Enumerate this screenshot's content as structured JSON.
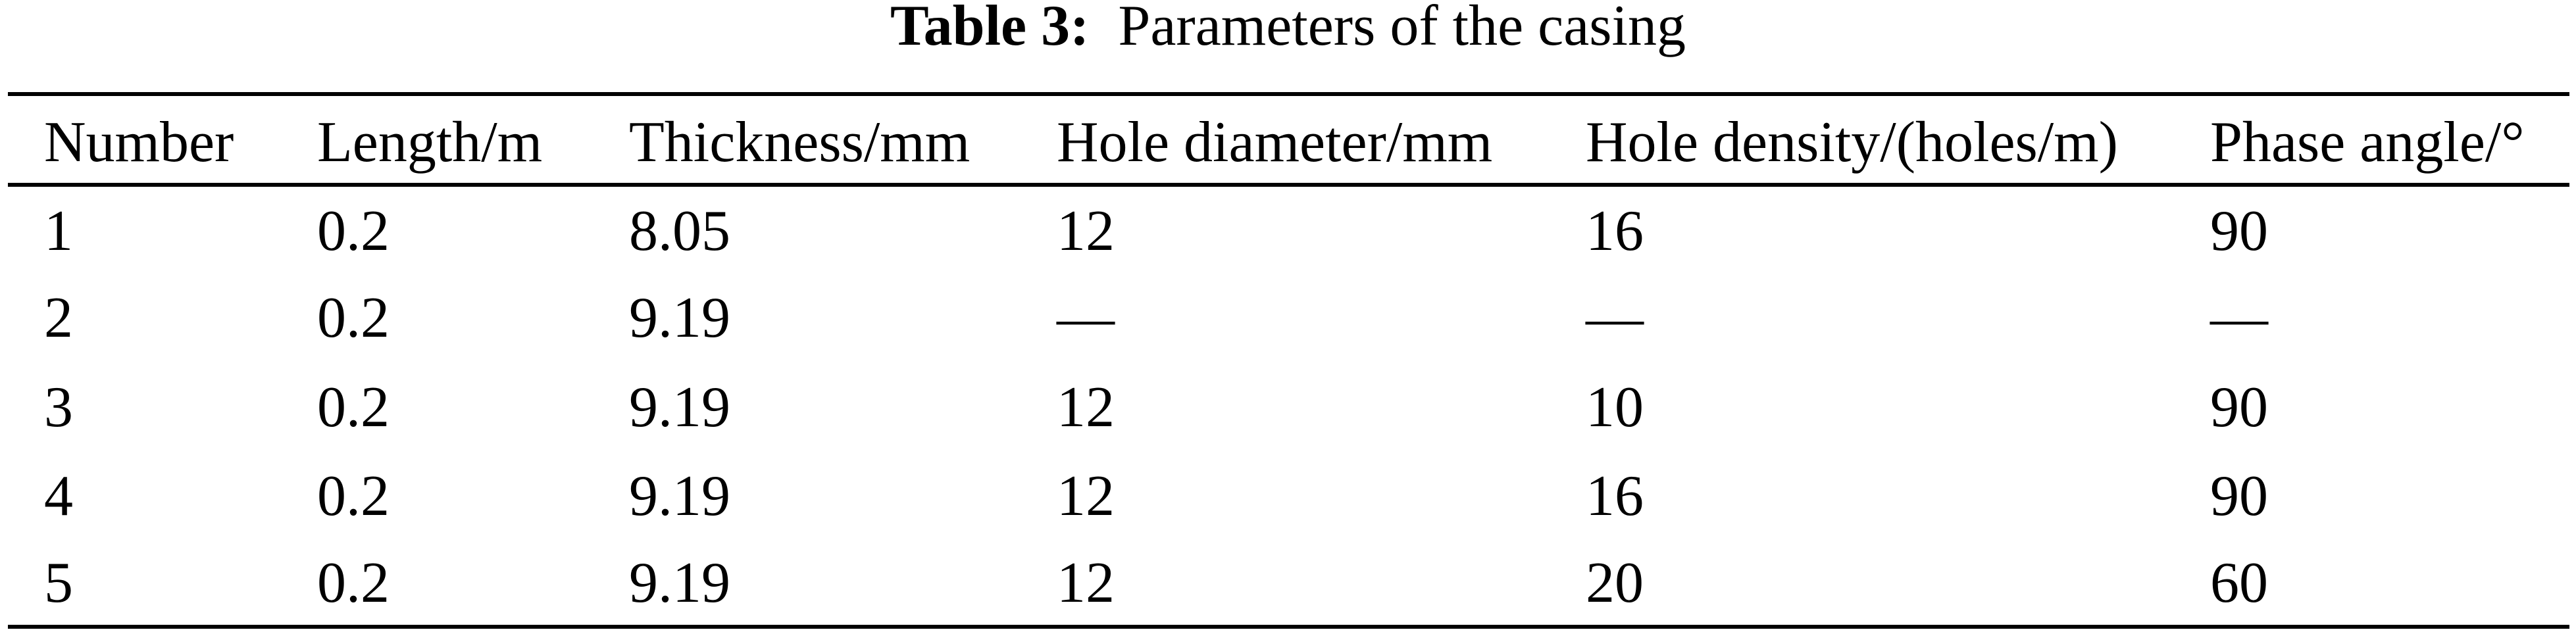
{
  "table": {
    "caption_label": "Table 3:",
    "caption_text": "Parameters of the casing",
    "columns": [
      "Number",
      "Length/m",
      "Thickness/mm",
      "Hole diameter/mm",
      "Hole density/(holes/m)",
      "Phase angle/°"
    ],
    "rows": [
      [
        "1",
        "0.2",
        "8.05",
        "12",
        "16",
        "90"
      ],
      [
        "2",
        "0.2",
        "9.19",
        "—",
        "—",
        "—"
      ],
      [
        "3",
        "0.2",
        "9.19",
        "12",
        "10",
        "90"
      ],
      [
        "4",
        "0.2",
        "9.19",
        "12",
        "16",
        "90"
      ],
      [
        "5",
        "0.2",
        "9.19",
        "12",
        "20",
        "60"
      ]
    ]
  }
}
